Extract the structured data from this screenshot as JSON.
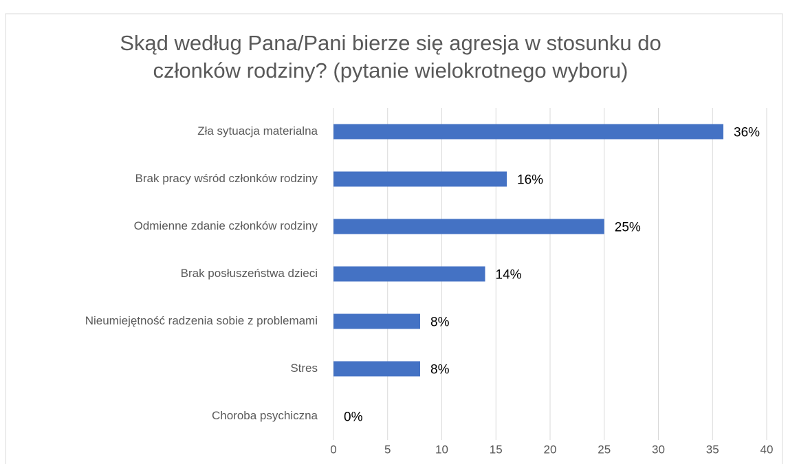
{
  "chart_data": {
    "type": "bar",
    "orientation": "horizontal",
    "title": [
      "Skąd według Pana/Pani bierze się agresja w stosunku do",
      "członków rodziny? (pytanie wielokrotnego wyboru)"
    ],
    "categories": [
      "Zła sytuacja materialna",
      "Brak pracy wśród członków rodziny",
      "Odmienne zdanie członków rodziny",
      "Brak posłuszeństwa dzieci",
      "Nieumiejętność radzenia sobie z problemami",
      "Stres",
      "Choroba psychiczna"
    ],
    "values": [
      36,
      16,
      25,
      14,
      8,
      8,
      0
    ],
    "value_labels": [
      "36%",
      "16%",
      "25%",
      "14%",
      "8%",
      "8%",
      "0%"
    ],
    "color": "#4472c4",
    "xlim": [
      0,
      40
    ],
    "xticks": [
      0,
      5,
      10,
      15,
      20,
      25,
      30,
      35,
      40
    ],
    "grid": true
  }
}
